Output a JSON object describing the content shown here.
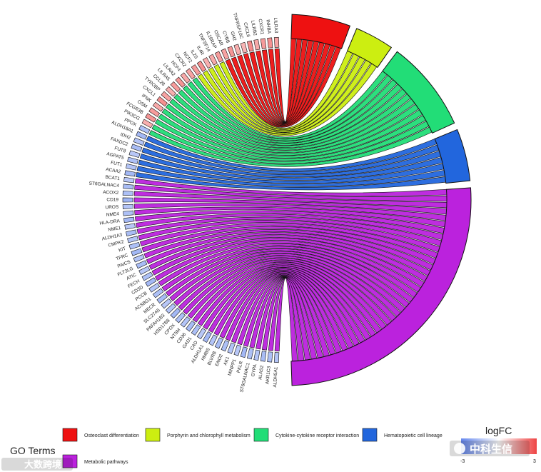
{
  "chart_data": {
    "type": "chord",
    "genes": [
      "LILRA3",
      "INHBA",
      "CXCR1",
      "LILRB2",
      "CXCL6",
      "TNFRSF10C",
      "GH2",
      "CYBB",
      "OSCAR",
      "IL18RAP",
      "TNFSF14",
      "IL4R",
      "IL2S",
      "NCF2",
      "CXCR2",
      "NCF4",
      "LILRA2",
      "LILRA5",
      "CCL28",
      "TYROBP",
      "CXCL1",
      "IFNK",
      "OSM",
      "FCGR3B",
      "PIK3CG",
      "PPOX",
      "ALDH18A1",
      "IDH2",
      "FAXDC2",
      "FUT8",
      "AGPAT5",
      "FUT1",
      "ACAA2",
      "BCAT1",
      "ST6GALNAC4",
      "ACOX2",
      "CD19",
      "UROS",
      "NME4",
      "HLA-DRA",
      "NME1",
      "ALDH1A3",
      "CMPK2",
      "KIT",
      "TFRC",
      "PAICS",
      "FLT3LG",
      "ATIC",
      "FECH",
      "CD3D",
      "PCCB",
      "ACSBG1",
      "MECR",
      "SLC27A5",
      "PAFAH1B3",
      "HSD17B8",
      "CPOX",
      "NT5M",
      "CD36",
      "GAD1",
      "CAD",
      "ALDH1A1",
      "HMBS",
      "BLVRB",
      "ENO2",
      "AK1",
      "MINPP1",
      "PKLR",
      "ST6GALNAC1",
      "GYPA",
      "ALAS2",
      "AKR1C3",
      "ALDH5A1"
    ],
    "gene_logfc": [
      1.5,
      1.8,
      1.6,
      1.4,
      1.9,
      1.2,
      1.3,
      1.7,
      1.5,
      1.6,
      1.4,
      1.3,
      1.8,
      1.6,
      1.5,
      1.4,
      1.7,
      1.6,
      1.3,
      1.5,
      1.8,
      1.4,
      1.6,
      1.7,
      1.3,
      -1.6,
      -1.8,
      -1.5,
      -1.7,
      -1.4,
      -1.6,
      -1.5,
      -1.8,
      -1.4,
      -1.7,
      -1.6,
      -1.9,
      -1.5,
      -1.6,
      -1.8,
      -1.4,
      -1.7,
      -1.5,
      -1.6,
      -1.8,
      -1.5,
      -1.7,
      -1.4,
      -1.6,
      -1.8,
      -1.5,
      -1.6,
      -1.7,
      -1.4,
      -1.5,
      -1.8,
      -1.6,
      -1.5,
      -1.7,
      -1.6,
      -1.4,
      -1.8,
      -1.5,
      -1.7,
      -1.6,
      -1.5,
      -1.4,
      -1.8,
      -1.6,
      -1.5,
      -1.7,
      -1.6,
      -1.5
    ],
    "terms": [
      {
        "name": "Osteoclast differentiation",
        "color": "#ee1111",
        "size": 9
      },
      {
        "name": "Porphyrin and chlorophyll metabolism",
        "color": "#ccee11",
        "size": 6
      },
      {
        "name": "Cytokine-cytokine receptor interaction",
        "color": "#22dd77",
        "size": 14
      },
      {
        "name": "Hematopoietic cell lineage",
        "color": "#2266dd",
        "size": 8
      },
      {
        "name": "Metabolic pathways",
        "color": "#bb22dd",
        "size": 45
      }
    ],
    "legend_title": "GO Terms",
    "colorbar": {
      "title": "logFC",
      "min": "-3",
      "max": "3",
      "low_color": "#6688ee",
      "high_color": "#ee4444"
    }
  },
  "watermark": {
    "right": "中科生信",
    "left": "大数跨境"
  }
}
